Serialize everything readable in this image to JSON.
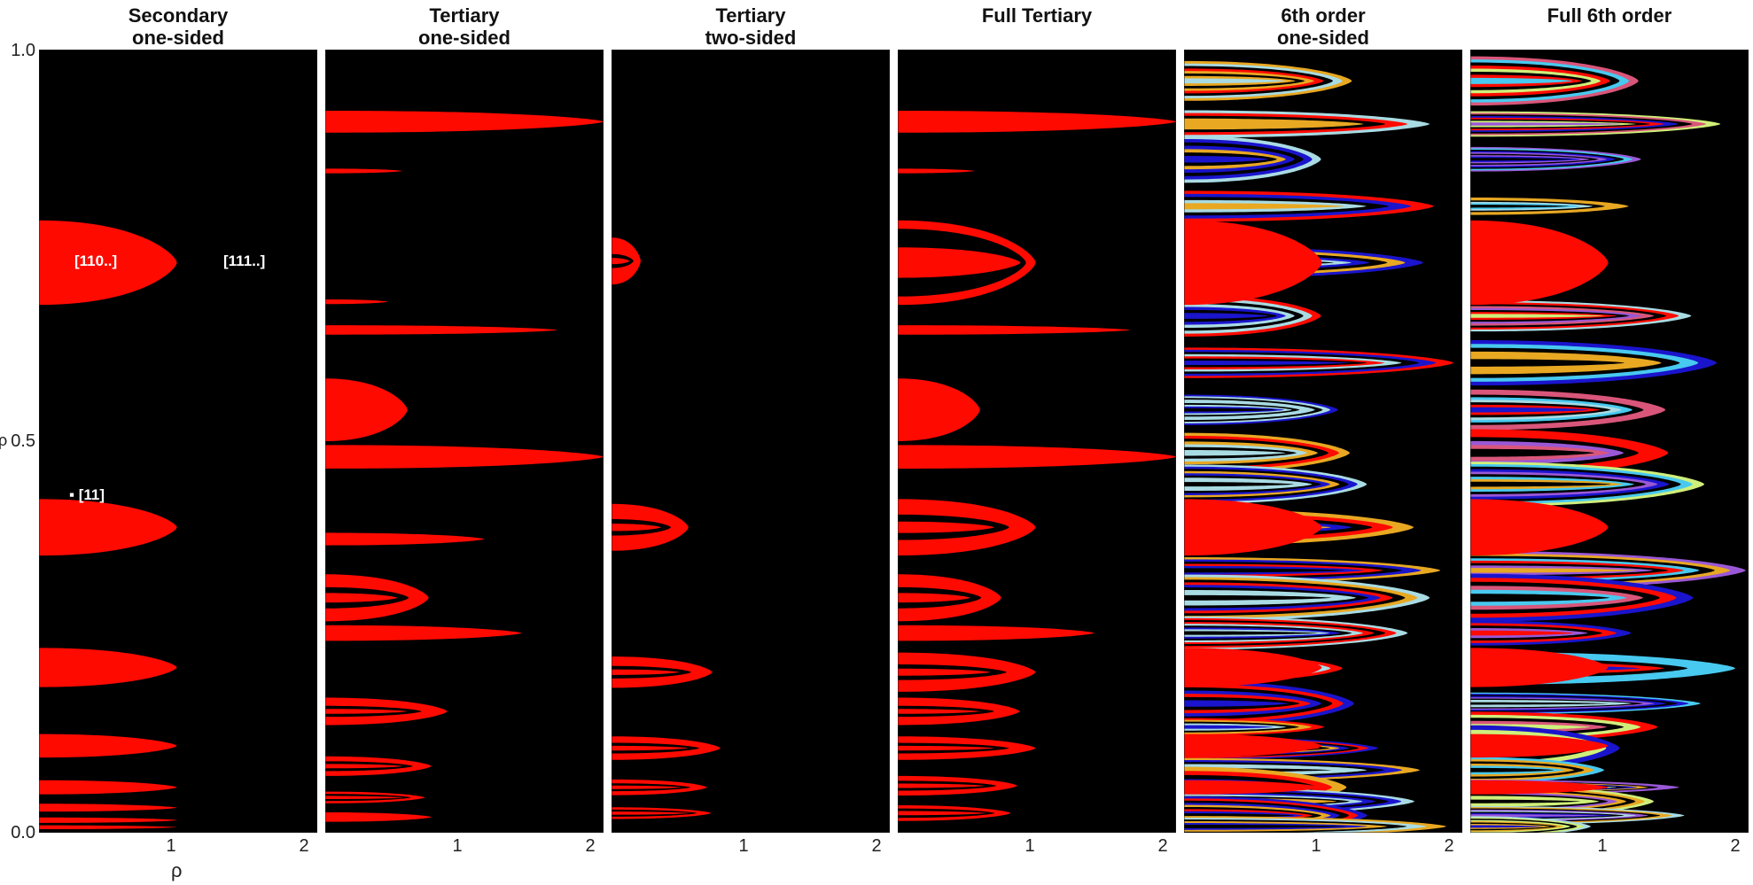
{
  "colors": {
    "background": "#000000",
    "primary_red": "#ff0a00",
    "blue": "#1a14cc",
    "light_blue": "#a9dbe3",
    "gold": "#e8a822",
    "white": "#ffffff"
  },
  "chart_data": [
    {
      "type": "heatmap",
      "title_line1": "Secondary",
      "title_line2": "one-sided",
      "xlabel": "ρ",
      "ylabel": "ρ",
      "xlim": [
        0,
        2.1
      ],
      "ylim": [
        0,
        1
      ],
      "yticks": [
        "0.0",
        "0.5",
        "1.0"
      ],
      "xticks": [
        "1",
        "2"
      ],
      "annotations": [
        {
          "text": "[110..]",
          "x": 0.44,
          "y": 0.728
        },
        {
          "text": "[111..]",
          "x": 1.56,
          "y": 0.728
        },
        {
          "text": "▪ [11]",
          "x": 0.38,
          "y": 0.43
        }
      ],
      "regions": [
        {
          "center": 0.728,
          "width": 0.108,
          "tip": 1.04
        },
        {
          "center": 0.39,
          "width": 0.072,
          "tip": 1.04
        },
        {
          "center": 0.211,
          "width": 0.05,
          "tip": 1.04
        },
        {
          "center": 0.111,
          "width": 0.03,
          "tip": 1.04
        },
        {
          "center": 0.058,
          "width": 0.018,
          "tip": 1.04
        },
        {
          "center": 0.032,
          "width": 0.01,
          "tip": 1.04
        },
        {
          "center": 0.016,
          "width": 0.007,
          "tip": 1.04
        },
        {
          "center": 0.007,
          "width": 0.005,
          "tip": 1.04
        }
      ]
    },
    {
      "type": "heatmap",
      "title_line1": "Tertiary",
      "title_line2": "one-sided",
      "xlim": [
        0,
        2.1
      ],
      "ylim": [
        0,
        1
      ],
      "xticks": [
        "1",
        "2"
      ],
      "regions": [
        {
          "center": 0.908,
          "width": 0.028,
          "tip": 2.1,
          "hollow": 0
        },
        {
          "center": 0.845,
          "width": 0.006,
          "tip": 0.58,
          "hollow": 0
        },
        {
          "center": 0.642,
          "width": 0.012,
          "tip": 1.75,
          "hollow": 0
        },
        {
          "center": 0.678,
          "width": 0.006,
          "tip": 0.47,
          "hollow": 0
        },
        {
          "center": 0.54,
          "width": 0.08,
          "tip": 0.62,
          "hollow": 0
        },
        {
          "center": 0.48,
          "width": 0.03,
          "tip": 2.1,
          "hollow": 0
        },
        {
          "center": 0.375,
          "width": 0.016,
          "tip": 1.2,
          "hollow": 0
        },
        {
          "center": 0.3,
          "width": 0.06,
          "tip": 0.78,
          "hollow": 0.55
        },
        {
          "center": 0.255,
          "width": 0.02,
          "tip": 1.48,
          "hollow": 0
        },
        {
          "center": 0.155,
          "width": 0.035,
          "tip": 0.92,
          "hollow": 0.6
        },
        {
          "center": 0.085,
          "width": 0.025,
          "tip": 0.8,
          "hollow": 0.5
        },
        {
          "center": 0.045,
          "width": 0.015,
          "tip": 0.75,
          "hollow": 0.4
        },
        {
          "center": 0.02,
          "width": 0.012,
          "tip": 0.8,
          "hollow": 0
        }
      ]
    },
    {
      "type": "heatmap",
      "title_line1": "Tertiary",
      "title_line2": "two-sided",
      "xlim": [
        0,
        2.1
      ],
      "ylim": [
        0,
        1
      ],
      "xticks": [
        "1",
        "2"
      ],
      "regions": [
        {
          "center": 0.73,
          "width": 0.06,
          "tip": 0.22,
          "hollow": 0.7
        },
        {
          "center": 0.39,
          "width": 0.06,
          "tip": 0.58,
          "hollow": 0.65
        },
        {
          "center": 0.205,
          "width": 0.04,
          "tip": 0.76,
          "hollow": 0.6
        },
        {
          "center": 0.108,
          "width": 0.03,
          "tip": 0.82,
          "hollow": 0.55
        },
        {
          "center": 0.058,
          "width": 0.02,
          "tip": 0.72,
          "hollow": 0.5
        },
        {
          "center": 0.025,
          "width": 0.015,
          "tip": 0.75,
          "hollow": 0.4
        }
      ]
    },
    {
      "type": "heatmap",
      "title_line1": "Full Tertiary",
      "title_line2": "",
      "xlim": [
        0,
        2.1
      ],
      "ylim": [
        0,
        1
      ],
      "xticks": [
        "1",
        "2"
      ],
      "regions": [
        {
          "center": 0.908,
          "width": 0.028,
          "tip": 2.1,
          "hollow": 0
        },
        {
          "center": 0.845,
          "width": 0.006,
          "tip": 0.58,
          "hollow": 0
        },
        {
          "center": 0.642,
          "width": 0.012,
          "tip": 1.75,
          "hollow": 0
        },
        {
          "center": 0.728,
          "width": 0.108,
          "tip": 1.04,
          "hollow": 0.2
        },
        {
          "center": 0.54,
          "width": 0.08,
          "tip": 0.62,
          "hollow": 0
        },
        {
          "center": 0.48,
          "width": 0.03,
          "tip": 2.1,
          "hollow": 0
        },
        {
          "center": 0.39,
          "width": 0.072,
          "tip": 1.04,
          "hollow": 0.55
        },
        {
          "center": 0.3,
          "width": 0.06,
          "tip": 0.78,
          "hollow": 0.55
        },
        {
          "center": 0.255,
          "width": 0.02,
          "tip": 1.48,
          "hollow": 0
        },
        {
          "center": 0.205,
          "width": 0.05,
          "tip": 1.04,
          "hollow": 0.6
        },
        {
          "center": 0.155,
          "width": 0.035,
          "tip": 0.92,
          "hollow": 0.6
        },
        {
          "center": 0.108,
          "width": 0.03,
          "tip": 1.04,
          "hollow": 0.55
        },
        {
          "center": 0.06,
          "width": 0.025,
          "tip": 0.9,
          "hollow": 0.5
        },
        {
          "center": 0.025,
          "width": 0.02,
          "tip": 0.85,
          "hollow": 0.4
        }
      ]
    },
    {
      "type": "heatmap",
      "title_line1": "6th order",
      "title_line2": "one-sided",
      "xlim": [
        0,
        2.1
      ],
      "ylim": [
        0,
        1
      ],
      "xticks": [
        "1",
        "2"
      ],
      "palette": [
        "#ff0a00",
        "#1a14cc",
        "#a9dbe3",
        "#e8a822"
      ]
    },
    {
      "type": "heatmap",
      "title_line1": "Full 6th order",
      "title_line2": "",
      "xlim": [
        0,
        2.1
      ],
      "ylim": [
        0,
        1
      ],
      "xticks": [
        "1",
        "2"
      ],
      "palette": [
        "#ff0a00",
        "#1a14cc",
        "#a9dbe3",
        "#e8a822",
        "#d9567a",
        "#48c9ef",
        "#9a58d6",
        "#cfef7a"
      ]
    }
  ]
}
